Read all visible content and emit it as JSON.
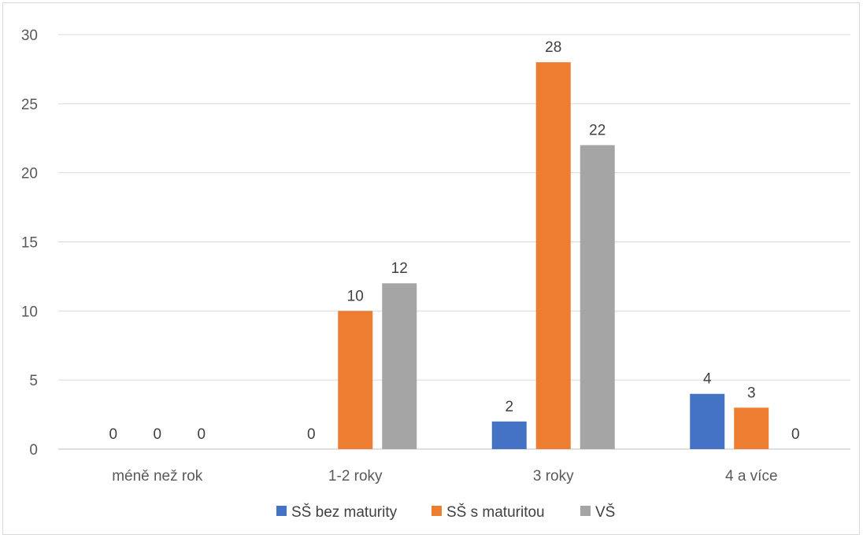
{
  "chart_data": {
    "type": "bar",
    "categories": [
      "méně než rok",
      "1-2 roky",
      "3 roky",
      "4 a více"
    ],
    "series": [
      {
        "name": "SŠ bez maturity",
        "color": "#4472c4",
        "values": [
          0,
          0,
          2,
          4
        ]
      },
      {
        "name": "SŠ s maturitou",
        "color": "#ed7d31",
        "values": [
          0,
          10,
          28,
          3
        ]
      },
      {
        "name": "VŠ",
        "color": "#a5a5a5",
        "values": [
          0,
          12,
          22,
          0
        ]
      }
    ],
    "title": "",
    "xlabel": "",
    "ylabel": "",
    "ylim": [
      0,
      30
    ],
    "yticks": [
      "0",
      "5",
      "10",
      "15",
      "20",
      "25",
      "30"
    ],
    "grid": true,
    "legend_position": "bottom",
    "data_labels": true
  }
}
